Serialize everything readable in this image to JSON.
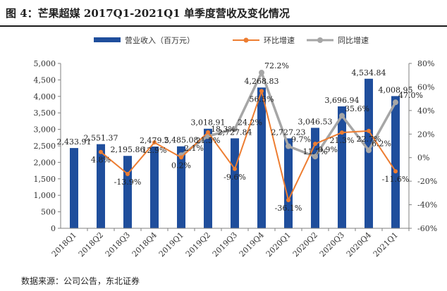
{
  "figure_title": "图 4：芒果超媒 2017Q1-2021Q1 单季度营收及变化情况",
  "source_note": "数据来源：公司公告，东北证券",
  "colors": {
    "bar": "#1f4e9c",
    "qoq": "#ed7d31",
    "yoy": "#a6a6a6",
    "axis": "#7f7f7f",
    "text": "#333333"
  },
  "chart_data": {
    "type": "bar+line",
    "categories": [
      "2018Q1",
      "2018Q2",
      "2018Q3",
      "2018Q4",
      "2019Q1",
      "2019Q2",
      "2019Q3",
      "2019Q4",
      "2020Q1",
      "2020Q2",
      "2020Q3",
      "2020Q4",
      "2021Q1"
    ],
    "series": [
      {
        "name": "营业收入（百万元）",
        "type": "bar",
        "axis": "left",
        "values": [
          2433.91,
          2551.37,
          2195.86,
          2479.5,
          2485.08,
          3018.91,
          2727.84,
          4268.83,
          2727.23,
          3046.53,
          3696.94,
          4534.84,
          4008.95
        ],
        "labels": [
          "2,433.91",
          "2,551.37",
          "2,195.86",
          "2,479.5",
          "2,485.08",
          "3,018.91",
          "2,727.84",
          "4,268.83",
          "2,727.23",
          "3,046.53",
          "3,696.94",
          "4,534.84",
          "4,008.95"
        ]
      },
      {
        "name": "环比增速",
        "type": "line",
        "axis": "right",
        "values": [
          null,
          4.8,
          -13.9,
          12.9,
          0.2,
          21.5,
          -9.6,
          56.5,
          -36.1,
          11.7,
          21.3,
          22.7,
          -11.6
        ],
        "labels": [
          null,
          "4.8%",
          "-13.9%",
          "12.9%",
          "0.2%",
          "21.5%",
          "-9.6%",
          "56.5%",
          "-36.1%",
          "11.7%",
          "21.3%",
          "22.7%",
          "-11.6%"
        ]
      },
      {
        "name": "同比增速",
        "type": "line",
        "axis": "right",
        "values": [
          null,
          null,
          null,
          null,
          2.1,
          18.3,
          24.2,
          72.2,
          9.7,
          0.9,
          35.6,
          6.2,
          47.0
        ],
        "labels": [
          null,
          null,
          null,
          null,
          "2.1%",
          "18.3%",
          "24.2%",
          "72.2%",
          "9.7%",
          "0.9%",
          "35.6%",
          "6.2%",
          "47.0%"
        ]
      }
    ],
    "left_axis": {
      "min": 0,
      "max": 5000,
      "ticks": [
        "0",
        "500",
        "1,000",
        "1,500",
        "2,000",
        "2,500",
        "3,000",
        "3,500",
        "4,000",
        "4,500",
        "5,000"
      ]
    },
    "right_axis": {
      "min": -60,
      "max": 80,
      "ticks": [
        "-60%",
        "-40%",
        "-20%",
        "0%",
        "20%",
        "40%",
        "60%",
        "80%"
      ]
    },
    "legend": [
      "营业收入（百万元）",
      "环比增速",
      "同比增速"
    ],
    "legend_position": "top"
  }
}
